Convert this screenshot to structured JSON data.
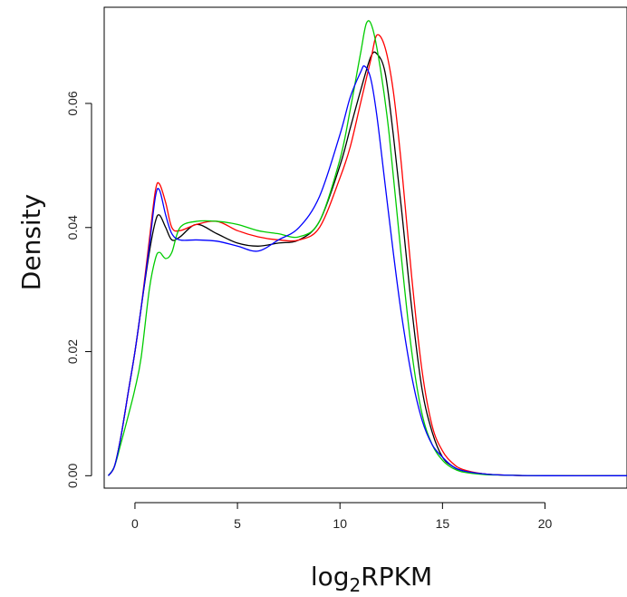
{
  "chart_data": {
    "type": "line",
    "title": "",
    "xlabel": {
      "main": "log",
      "sub": "2",
      "rest": "RPKM"
    },
    "ylabel": "Density",
    "xlim": [
      -1.5,
      24
    ],
    "ylim": [
      -0.002,
      0.0755
    ],
    "xticks": [
      0,
      5,
      10,
      15,
      20
    ],
    "xtick_labels": [
      "0",
      "5",
      "10",
      "15",
      "20"
    ],
    "yticks": [
      0.0,
      0.02,
      0.04,
      0.06
    ],
    "ytick_labels": [
      "0.00",
      "0.02",
      "0.04",
      "0.06"
    ],
    "grid": false,
    "legend": "none",
    "series": [
      {
        "color": "#000000",
        "x": [
          -1.3,
          -1,
          -0.7,
          -0.3,
          0,
          0.3,
          0.7,
          1.0,
          1.2,
          1.5,
          1.8,
          2.2,
          3,
          4,
          5,
          6,
          7,
          8,
          9,
          10,
          10.5,
          11,
          11.5,
          11.8,
          12.2,
          12.6,
          13,
          13.5,
          14,
          14.5,
          15,
          15.5,
          16,
          17,
          18,
          20,
          24
        ],
        "y": [
          0.0,
          0.0015,
          0.006,
          0.014,
          0.02,
          0.027,
          0.036,
          0.041,
          0.042,
          0.04,
          0.038,
          0.0385,
          0.0405,
          0.039,
          0.0375,
          0.037,
          0.0375,
          0.038,
          0.041,
          0.05,
          0.056,
          0.062,
          0.0675,
          0.068,
          0.065,
          0.055,
          0.043,
          0.027,
          0.014,
          0.007,
          0.003,
          0.0015,
          0.0008,
          0.0003,
          0.0001,
          0.0,
          0.0
        ]
      },
      {
        "color": "#ff0000",
        "x": [
          -1.3,
          -1,
          -0.7,
          -0.3,
          0,
          0.3,
          0.7,
          1.0,
          1.2,
          1.5,
          1.8,
          2.2,
          3,
          4,
          5,
          6,
          7,
          8,
          9,
          10,
          10.5,
          11,
          11.5,
          11.8,
          12.2,
          12.6,
          13,
          13.5,
          14,
          14.5,
          15,
          15.5,
          16,
          17,
          18,
          20,
          24
        ],
        "y": [
          0.0,
          0.0015,
          0.006,
          0.014,
          0.02,
          0.027,
          0.038,
          0.046,
          0.047,
          0.044,
          0.04,
          0.0395,
          0.0405,
          0.041,
          0.0395,
          0.0385,
          0.038,
          0.038,
          0.04,
          0.048,
          0.053,
          0.06,
          0.067,
          0.071,
          0.069,
          0.062,
          0.05,
          0.032,
          0.017,
          0.008,
          0.004,
          0.002,
          0.001,
          0.0003,
          0.0001,
          0.0,
          0.0
        ]
      },
      {
        "color": "#00cc00",
        "x": [
          -1.3,
          -1,
          -0.7,
          -0.3,
          0,
          0.3,
          0.7,
          1.0,
          1.2,
          1.5,
          1.8,
          2.2,
          3,
          4,
          5,
          6,
          7,
          8,
          9,
          10,
          10.5,
          11,
          11.3,
          11.6,
          12,
          12.4,
          13,
          13.5,
          14,
          14.5,
          15,
          15.5,
          16,
          17,
          18,
          20,
          24
        ],
        "y": [
          0.0,
          0.0015,
          0.005,
          0.01,
          0.014,
          0.019,
          0.03,
          0.035,
          0.036,
          0.035,
          0.036,
          0.04,
          0.041,
          0.041,
          0.0405,
          0.0395,
          0.039,
          0.0385,
          0.041,
          0.051,
          0.059,
          0.068,
          0.073,
          0.072,
          0.065,
          0.055,
          0.035,
          0.02,
          0.01,
          0.005,
          0.0025,
          0.0012,
          0.0006,
          0.0002,
          0.0001,
          0.0,
          0.0
        ]
      },
      {
        "color": "#0000ff",
        "x": [
          -1.3,
          -1,
          -0.7,
          -0.3,
          0,
          0.3,
          0.7,
          1.0,
          1.2,
          1.5,
          1.8,
          2.2,
          3,
          4,
          5,
          6,
          7,
          8,
          9,
          10,
          10.5,
          11,
          11.2,
          11.5,
          11.8,
          12.2,
          12.6,
          13,
          13.5,
          14,
          14.5,
          15,
          15.5,
          16,
          17,
          18,
          20,
          24
        ],
        "y": [
          0.0,
          0.0015,
          0.006,
          0.014,
          0.02,
          0.027,
          0.037,
          0.045,
          0.046,
          0.042,
          0.039,
          0.038,
          0.038,
          0.0378,
          0.037,
          0.0362,
          0.038,
          0.04,
          0.045,
          0.055,
          0.061,
          0.065,
          0.066,
          0.064,
          0.058,
          0.047,
          0.036,
          0.026,
          0.016,
          0.009,
          0.005,
          0.003,
          0.0015,
          0.0008,
          0.0003,
          0.0001,
          0.0,
          0.0
        ]
      }
    ]
  }
}
